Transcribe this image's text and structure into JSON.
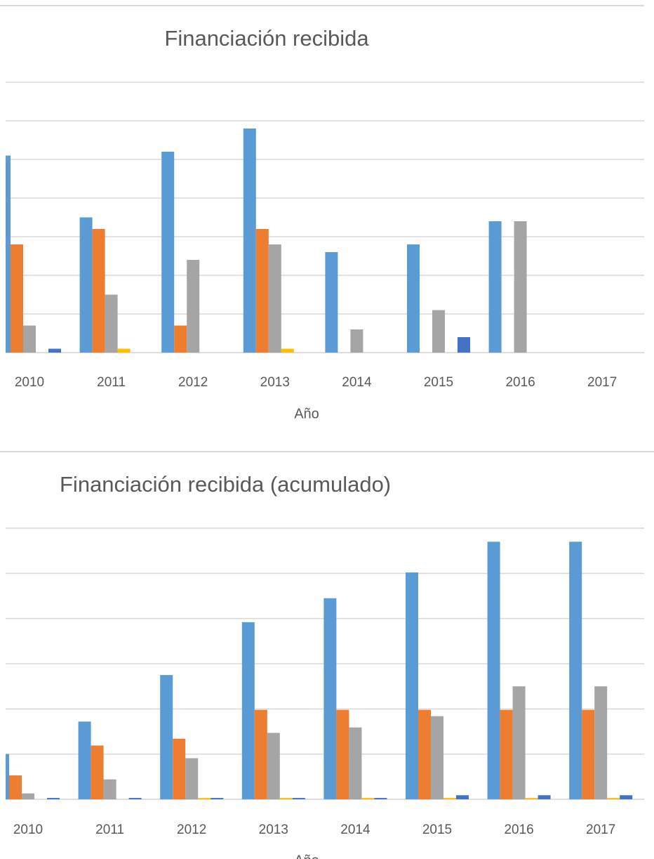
{
  "chart_data": [
    {
      "type": "bar",
      "title": "Financiación recibida",
      "xlabel": "Año",
      "categories": [
        "2010",
        "2011",
        "2012",
        "2013",
        "2014",
        "2015",
        "2016",
        "2017"
      ],
      "series": [
        {
          "color": "#5b9bd5",
          "values": [
            5.1,
            3.5,
            5.2,
            5.8,
            2.6,
            2.8,
            3.4,
            0
          ]
        },
        {
          "color": "#ed7d31",
          "values": [
            2.8,
            3.2,
            0.7,
            3.2,
            0,
            0,
            0,
            0
          ]
        },
        {
          "color": "#a5a5a5",
          "values": [
            0.7,
            1.5,
            2.4,
            2.8,
            0.6,
            1.1,
            3.4,
            0
          ]
        },
        {
          "color": "#ffc000",
          "values": [
            0,
            0.1,
            0,
            0.1,
            0,
            0,
            0,
            0
          ]
        },
        {
          "color": "#4472c4",
          "values": [
            0.1,
            0,
            0,
            0,
            0,
            0.4,
            0,
            0
          ]
        }
      ],
      "ylim": [
        0,
        7
      ],
      "yticks": [
        0,
        1,
        2,
        3,
        4,
        5,
        6,
        7
      ],
      "grid": true
    },
    {
      "type": "bar",
      "title": "Financiación recibida (acumulado)",
      "xlabel": "Año",
      "categories": [
        "2010",
        "2011",
        "2012",
        "2013",
        "2014",
        "2015",
        "2016",
        "2017"
      ],
      "series": [
        {
          "color": "#5b9bd5",
          "values": [
            1.0,
            1.72,
            2.75,
            3.92,
            4.45,
            5.02,
            5.7,
            5.7
          ]
        },
        {
          "color": "#ed7d31",
          "values": [
            0.53,
            1.19,
            1.34,
            1.98,
            1.98,
            1.98,
            1.98,
            1.98
          ]
        },
        {
          "color": "#a5a5a5",
          "values": [
            0.13,
            0.44,
            0.91,
            1.47,
            1.59,
            1.84,
            2.5,
            2.5
          ]
        },
        {
          "color": "#ffc000",
          "values": [
            0,
            0,
            0.03,
            0.03,
            0.03,
            0.03,
            0.03,
            0.03
          ]
        },
        {
          "color": "#4472c4",
          "values": [
            0.03,
            0.03,
            0.03,
            0.03,
            0.03,
            0.09,
            0.09,
            0.09
          ]
        }
      ],
      "ylim": [
        0,
        6
      ],
      "yticks": [
        0,
        1,
        2,
        3,
        4,
        5,
        6
      ],
      "grid": true
    }
  ]
}
